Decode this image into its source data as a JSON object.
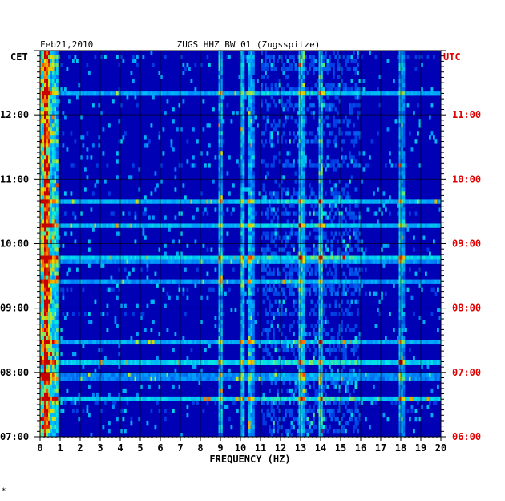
{
  "chart_data": {
    "type": "heatmap",
    "title": "ZUGS HHZ BW 01 (Zugsspitze)",
    "date": "Feb21,2010",
    "left_axis_title": "CET",
    "right_axis_title": "UTC",
    "xlabel": "FREQUENCY (HZ)",
    "xlim": [
      0,
      20
    ],
    "x_ticks": [
      "0",
      "1",
      "2",
      "3",
      "4",
      "5",
      "6",
      "7",
      "8",
      "9",
      "10",
      "11",
      "12",
      "13",
      "14",
      "15",
      "16",
      "17",
      "18",
      "19",
      "20"
    ],
    "cet_ticks": [
      "12:00",
      "11:00",
      "10:00",
      "09:00",
      "08:00",
      "07:00"
    ],
    "utc_ticks": [
      "11:00",
      "10:00",
      "09:00",
      "08:00",
      "07:00",
      "06:00"
    ],
    "time_range_cet": [
      "07:00",
      "13:00"
    ],
    "colors": {
      "background": "#0000b4",
      "cet_label": "#000000",
      "utc_label": "#e00000",
      "gridline": "#000000"
    },
    "strong_bands_hz": [
      0.3,
      9.0,
      10.1,
      10.5,
      13.0,
      14.0,
      18.0
    ],
    "footer_mark": "*"
  }
}
